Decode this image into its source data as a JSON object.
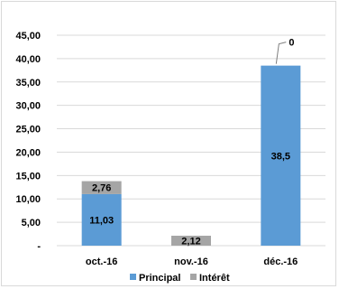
{
  "chart_data": {
    "type": "bar",
    "stacked": true,
    "categories": [
      "oct.-16",
      "nov.-16",
      "déc.-16"
    ],
    "series": [
      {
        "name": "Principal",
        "values": [
          11.03,
          0,
          38.5
        ],
        "color": "#5b9bd5",
        "labels": [
          "11,03",
          "",
          "38,5"
        ]
      },
      {
        "name": "Intérêt",
        "values": [
          2.76,
          2.12,
          0
        ],
        "color": "#a5a5a5",
        "labels": [
          "2,76",
          "2,12",
          "0"
        ]
      }
    ],
    "y_ticks": [
      0,
      5,
      10,
      15,
      20,
      25,
      30,
      35,
      40,
      45
    ],
    "y_tick_labels": [
      "-",
      "5,00",
      "10,00",
      "15,00",
      "20,00",
      "25,00",
      "30,00",
      "35,00",
      "40,00",
      "45,00"
    ],
    "ylim": [
      0,
      45
    ],
    "grid": true,
    "legend_position": "bottom"
  }
}
